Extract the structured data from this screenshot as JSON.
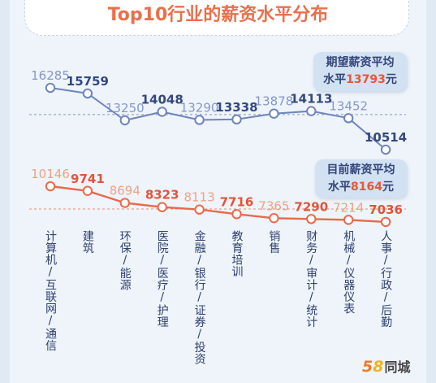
{
  "chart_data": {
    "type": "line",
    "title": "Top10行业的薪资水平分布",
    "xlabel": "",
    "ylabel": "",
    "grid": false,
    "legend": "none",
    "categories": [
      "计算机/互联网/通信",
      "建筑",
      "环保/能源",
      "医院/医疗/护理",
      "金融/银行/证券/投资",
      "教育培训",
      "销售",
      "财务/审计/统计",
      "机械/仪器仪表",
      "人事/行政/后勤"
    ],
    "series": [
      {
        "values": [
          16285,
          15759,
          13250,
          14048,
          13290,
          13338,
          13878,
          14113,
          13452,
          10514
        ],
        "average": 13793,
        "color": "#6f84bd"
      },
      {
        "values": [
          10146,
          9741,
          8694,
          8323,
          8113,
          7716,
          7365,
          7290,
          7214,
          7036
        ],
        "average": 8164,
        "color": "#e8694a"
      }
    ],
    "annotations": [
      {
        "line1": "期望薪资平均",
        "prefix": "水平",
        "suffix": "元"
      },
      {
        "line1": "目前薪资平均",
        "prefix": "水平",
        "suffix": "元"
      }
    ]
  },
  "logo": {
    "digit1": "5",
    "digit2": "8",
    "name": "同城"
  },
  "colors": {
    "title": "#ea6f4b",
    "expected_line": "#6f84bd",
    "current_line": "#e8694a",
    "highlight_value": "#e8553a",
    "callout_bg": "#d3e2f2"
  }
}
